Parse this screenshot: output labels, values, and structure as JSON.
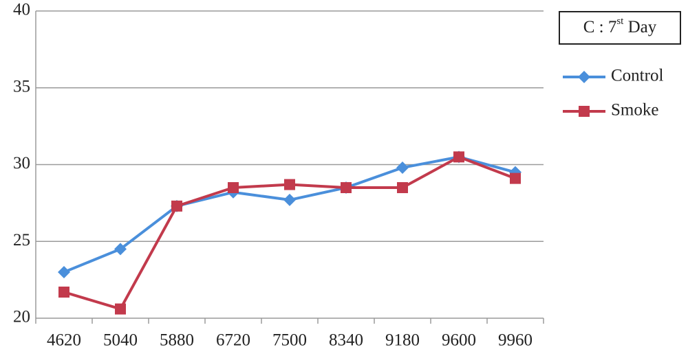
{
  "chart_data": {
    "type": "line",
    "annotation": [
      "C : 7",
      "st",
      " Day"
    ],
    "categories": [
      "4620",
      "5040",
      "5880",
      "6720",
      "7500",
      "8340",
      "9180",
      "9600",
      "9960"
    ],
    "series": [
      {
        "name": "Control",
        "color": "#4a8fdb",
        "marker": "diamond",
        "values": [
          23.0,
          24.5,
          27.3,
          28.2,
          27.7,
          28.5,
          29.8,
          30.5,
          29.5
        ]
      },
      {
        "name": "Smoke",
        "color": "#c23a4c",
        "marker": "square",
        "values": [
          21.7,
          20.6,
          27.3,
          28.5,
          28.7,
          28.5,
          28.5,
          30.5,
          29.1
        ]
      }
    ],
    "ylim": [
      20,
      40
    ],
    "yticks": [
      20,
      25,
      30,
      35,
      40
    ],
    "grid": true,
    "legend": "right"
  }
}
